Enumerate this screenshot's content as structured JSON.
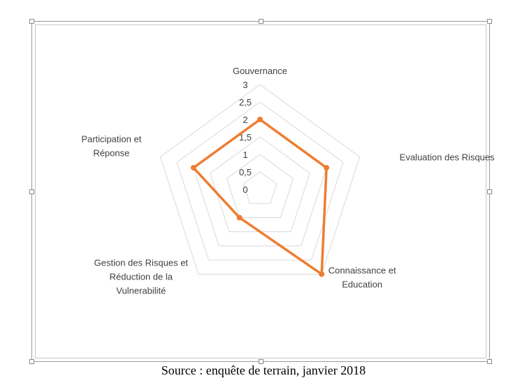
{
  "chart_data": {
    "type": "radar",
    "categories": [
      "Gouvernance",
      "Evaluation des Risques",
      "Connaissance et Education",
      "Gestion des Risques et Réduction de la Vulnerabilité",
      "Participation et Réponse"
    ],
    "category_lines": [
      [
        "Gouvernance"
      ],
      [
        "Evaluation des Risques"
      ],
      [
        "Connaissance et",
        "Education"
      ],
      [
        "Gestion des Risques et",
        "Réduction de la",
        "Vulnerabilité"
      ],
      [
        "Participation et",
        "Réponse"
      ]
    ],
    "series": [
      {
        "values": [
          2,
          2,
          3,
          1,
          2
        ],
        "color": "#ED7D31"
      }
    ],
    "rlim": [
      0,
      3
    ],
    "ticks": [
      0,
      0.5,
      1,
      1.5,
      2,
      2.5,
      3
    ],
    "tick_labels": [
      "0",
      "0,5",
      "1",
      "1,5",
      "2",
      "2,5",
      "3"
    ],
    "grid": true,
    "legend": "none",
    "grid_color": "#d9d9d9"
  },
  "caption": "Source : enquête de terrain, janvier 2018"
}
